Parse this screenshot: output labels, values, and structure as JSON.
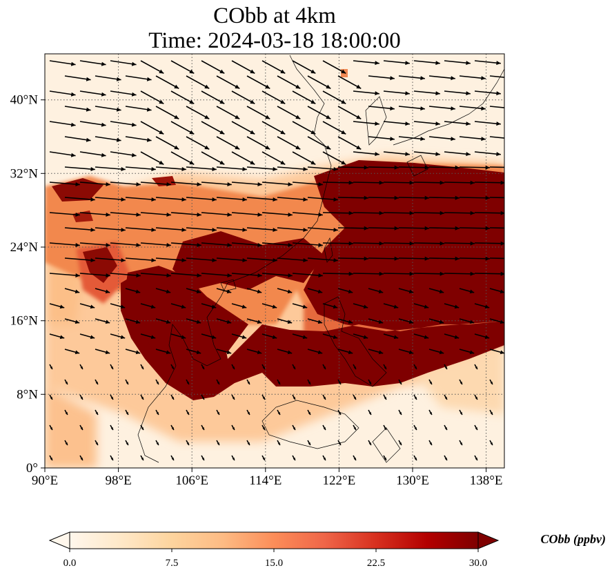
{
  "title": {
    "line1": "CObb at 4km",
    "line2": "Time: 2024-03-18 18:00:00"
  },
  "map": {
    "projection": "PlateCarree",
    "lon_range": [
      90,
      140
    ],
    "lat_range": [
      0,
      45
    ],
    "gridlines": "dotted",
    "x_ticks": [
      "90°E",
      "98°E",
      "106°E",
      "114°E",
      "122°E",
      "130°E",
      "138°E"
    ],
    "x_tick_values": [
      90,
      98,
      106,
      114,
      122,
      130,
      138
    ],
    "y_ticks": [
      "0°",
      "8°N",
      "16°N",
      "24°N",
      "32°N",
      "40°N"
    ],
    "y_tick_values": [
      0,
      8,
      16,
      24,
      32,
      40
    ],
    "field": "CObb concentration (filled contour)",
    "vectors": "wind arrows"
  },
  "colorbar": {
    "label": "CObb (ppbv)",
    "ticks": [
      "0.0",
      "7.5",
      "15.0",
      "22.5",
      "30.0"
    ],
    "range": [
      0,
      30
    ],
    "extend": "both",
    "colors": [
      "#fff7ec",
      "#fee8c8",
      "#fdd49e",
      "#fdbb84",
      "#fc8d59",
      "#ef6548",
      "#d7301f",
      "#b30000",
      "#7f0000"
    ]
  }
}
